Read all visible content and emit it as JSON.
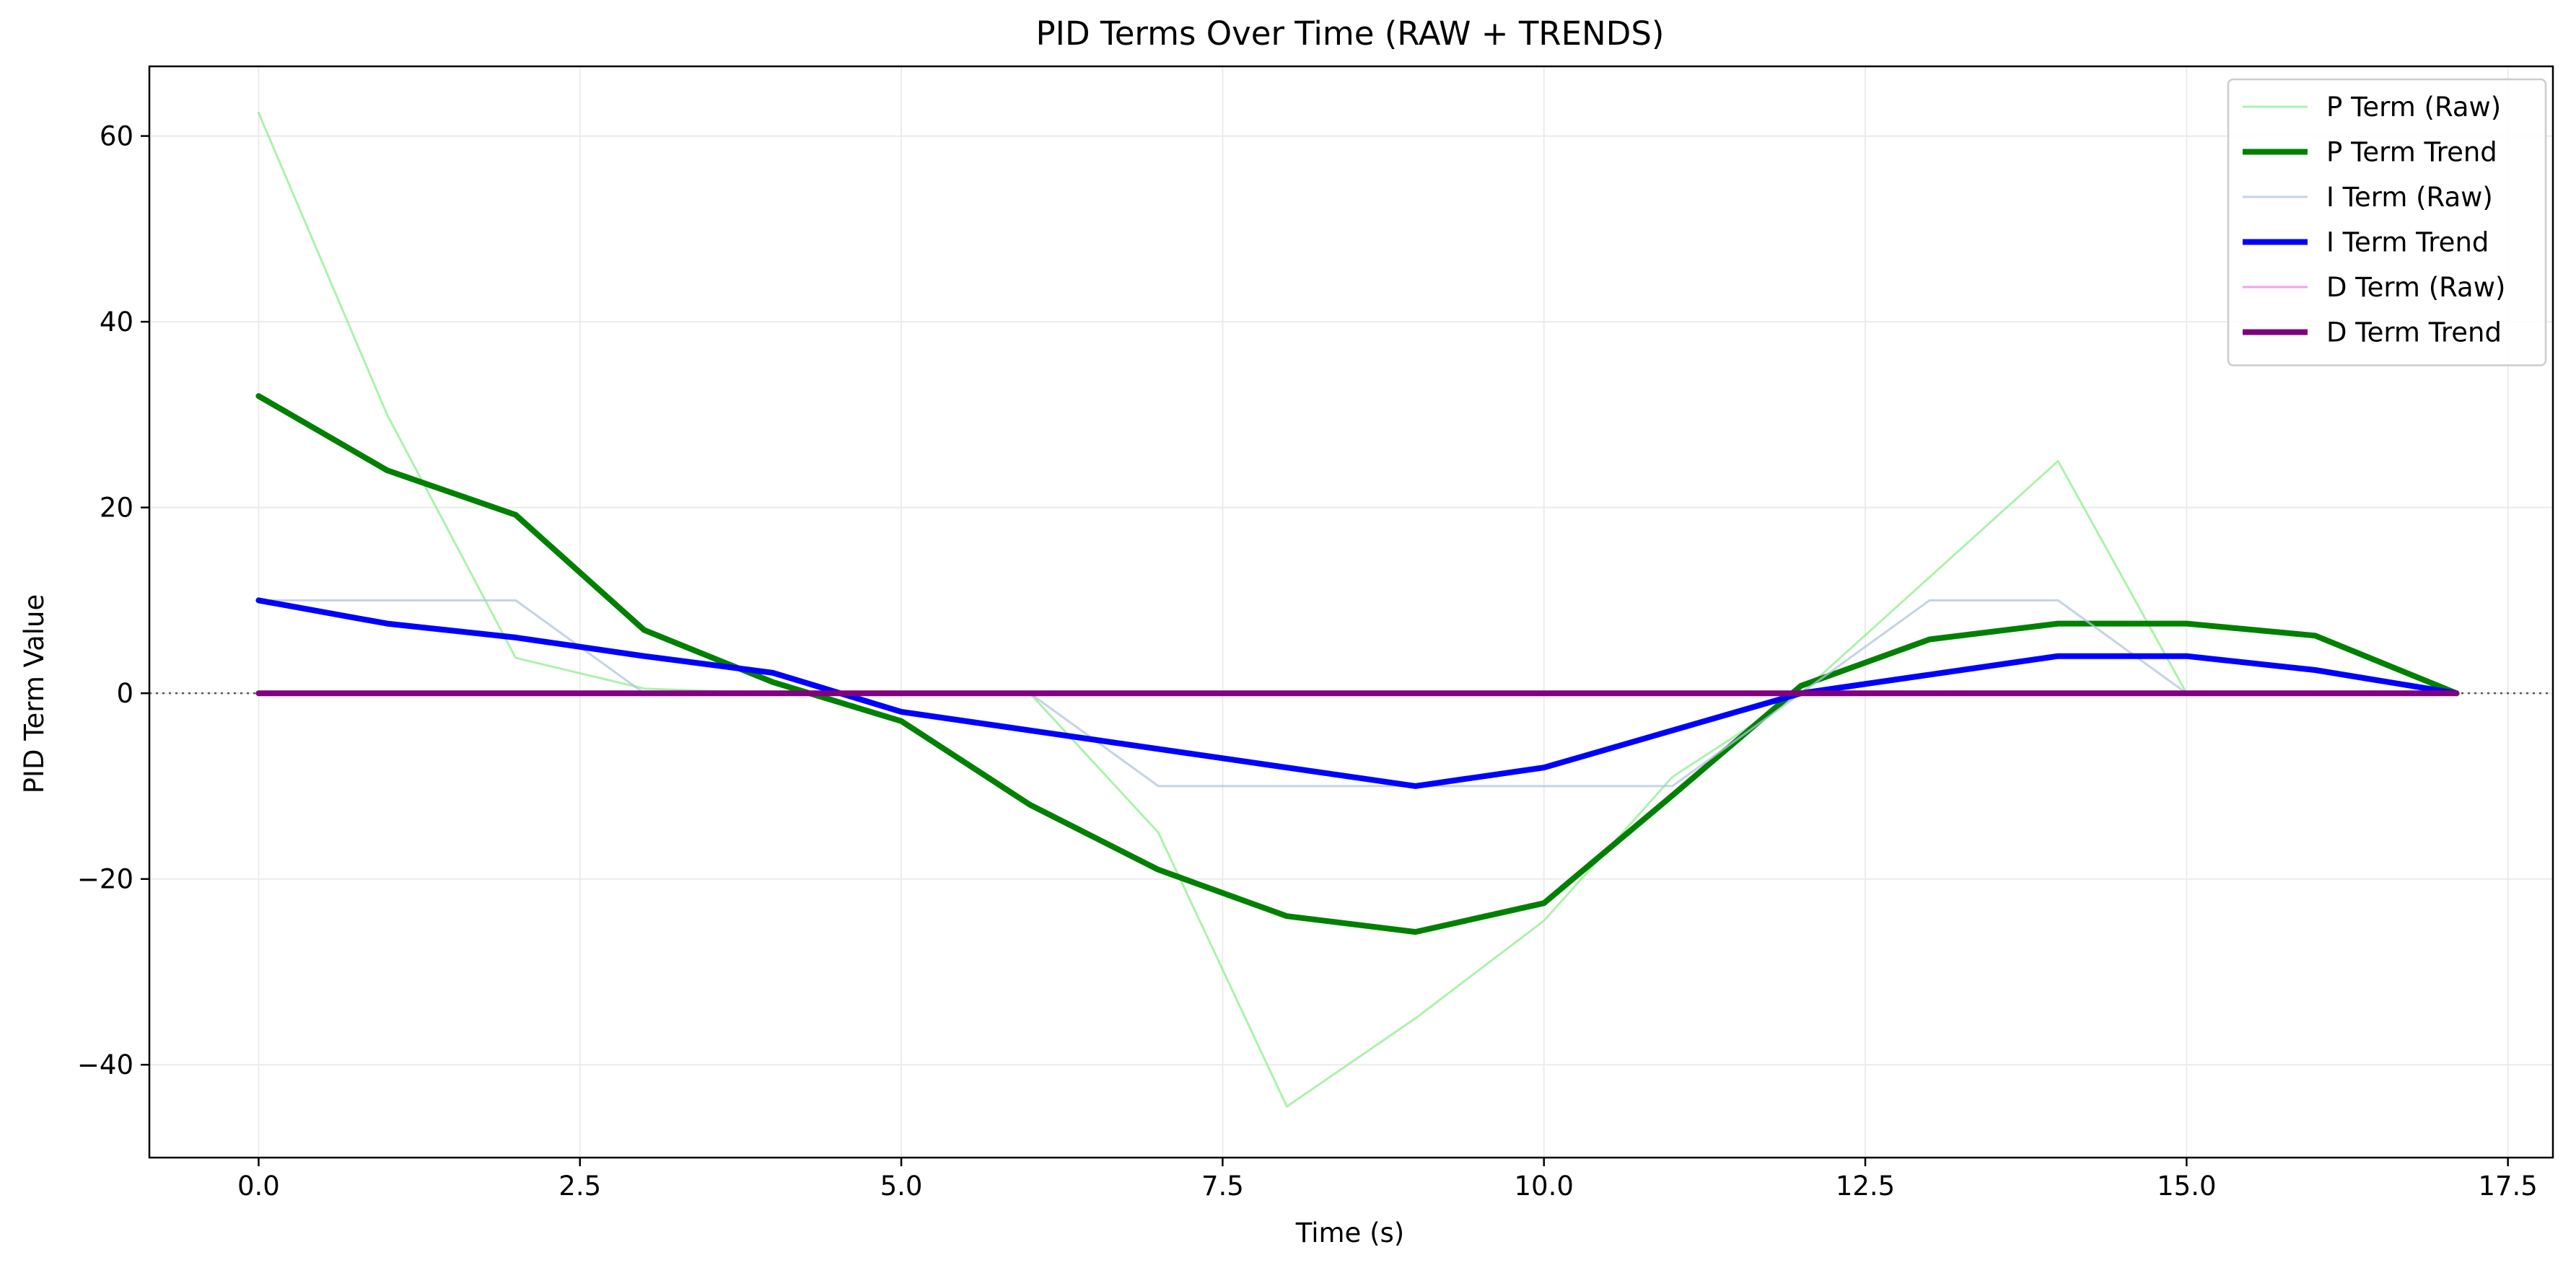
{
  "chart_data": {
    "type": "line",
    "title": "PID Terms Over Time (RAW + TRENDS)",
    "xlabel": "Time (s)",
    "ylabel": "PID Term Value",
    "xlim": [
      -0.85,
      17.85
    ],
    "ylim": [
      -50,
      67.5
    ],
    "xticks": [
      0.0,
      2.5,
      5.0,
      7.5,
      10.0,
      12.5,
      15.0,
      17.5
    ],
    "xtick_labels": [
      "0.0",
      "2.5",
      "5.0",
      "7.5",
      "10.0",
      "12.5",
      "15.0",
      "17.5"
    ],
    "yticks": [
      -40,
      -20,
      0,
      20,
      40,
      60
    ],
    "ytick_labels": [
      "−40",
      "−20",
      "0",
      "20",
      "40",
      "60"
    ],
    "grid": true,
    "zero_line": true,
    "legend_position": "top-right",
    "series": [
      {
        "name": "P Term (Raw)",
        "color": "#90ee90",
        "style": "raw",
        "x": [
          0,
          1,
          2,
          3,
          4,
          5,
          6,
          7,
          8,
          9,
          10,
          11,
          12,
          13,
          14,
          15,
          16,
          17.1
        ],
        "y": [
          62.5,
          30,
          3.8,
          0.5,
          0,
          0,
          0,
          -15,
          -44.5,
          -35,
          -24.5,
          -9,
          0,
          12.5,
          25,
          0,
          0,
          0
        ]
      },
      {
        "name": "P Term Trend",
        "color": "#008000",
        "style": "trend",
        "x": [
          0,
          1,
          2,
          3,
          4,
          5,
          6,
          7,
          8,
          9,
          10,
          11,
          12,
          13,
          14,
          15,
          16,
          17.1
        ],
        "y": [
          32,
          24,
          19.2,
          6.8,
          1.2,
          -3,
          -12,
          -19,
          -24,
          -25.7,
          -22.6,
          -11,
          0.8,
          5.8,
          7.5,
          7.5,
          6.2,
          0
        ]
      },
      {
        "name": "I Term (Raw)",
        "color": "#b0c4de",
        "style": "raw",
        "x": [
          0,
          1,
          2,
          3,
          4,
          5,
          6,
          7,
          8,
          9,
          10,
          11,
          12,
          13,
          14,
          15,
          16,
          17.1
        ],
        "y": [
          10,
          10,
          10,
          0,
          0,
          0,
          0,
          -10,
          -10,
          -10,
          -10,
          -10,
          0,
          10,
          10,
          0,
          0,
          0
        ]
      },
      {
        "name": "I Term Trend",
        "color": "#0000ff",
        "style": "trend",
        "x": [
          0,
          1,
          2,
          3,
          4,
          5,
          6,
          7,
          8,
          9,
          10,
          11,
          12,
          13,
          14,
          15,
          16,
          17.1
        ],
        "y": [
          10,
          7.5,
          6,
          4,
          2.2,
          -2,
          -4,
          -6,
          -8,
          -10,
          -8,
          -4,
          0,
          2,
          4,
          4,
          2.5,
          0
        ]
      },
      {
        "name": "D Term (Raw)",
        "color": "#ee82ee",
        "style": "raw",
        "x": [
          0,
          17.1
        ],
        "y": [
          0,
          0
        ]
      },
      {
        "name": "D Term Trend",
        "color": "#800080",
        "style": "trend",
        "x": [
          0,
          17.1
        ],
        "y": [
          0,
          0
        ]
      }
    ]
  }
}
